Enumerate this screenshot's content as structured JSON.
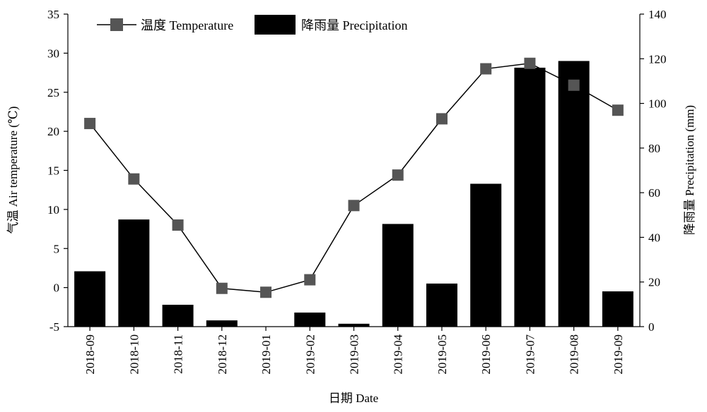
{
  "chart_data": {
    "type": "bar+line",
    "xlabel": "日期 Date",
    "categories": [
      "2018-09",
      "2018-10",
      "2018-11",
      "2018-12",
      "2019-01",
      "2019-02",
      "2019-03",
      "2019-04",
      "2019-05",
      "2019-06",
      "2019-07",
      "2019-08",
      "2019-09"
    ],
    "y_left": {
      "label": "气温 Air temperature (℃)",
      "range": [
        -5,
        35
      ],
      "ticks": [
        -5,
        0,
        5,
        10,
        15,
        20,
        25,
        30,
        35
      ]
    },
    "y_right": {
      "label": "降雨量 Precipitation (mm)",
      "range": [
        0,
        140
      ],
      "ticks": [
        0,
        20,
        40,
        60,
        80,
        100,
        120,
        140
      ]
    },
    "series": [
      {
        "name": "温度 Temperature",
        "kind": "line",
        "axis": "left",
        "marker": "square",
        "color": "#555555",
        "values": [
          21.0,
          13.9,
          8.0,
          -0.1,
          -0.6,
          1.0,
          10.5,
          14.4,
          21.6,
          28.0,
          28.7,
          25.9,
          22.7
        ]
      },
      {
        "name": "降雨量 Precipitation",
        "kind": "bar",
        "axis": "right",
        "color": "#000000",
        "values": [
          24.8,
          48.0,
          9.8,
          2.8,
          0.0,
          6.3,
          1.3,
          46.0,
          19.3,
          64.0,
          116.0,
          119.0,
          15.8
        ]
      }
    ],
    "legend_position": "top-left",
    "grid": false
  }
}
